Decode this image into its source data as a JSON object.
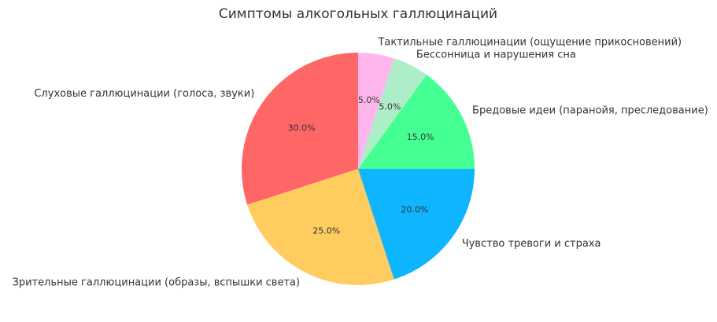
{
  "chart_data": {
    "type": "pie",
    "title": "Симптомы алкогольных галлюцинаций",
    "start_angle_deg": 90,
    "direction": "counterclockwise",
    "slices": [
      {
        "label": "Слуховые галлюцинации (голоса, звуки)",
        "value": 30,
        "pct_label": "30.0%",
        "color": "#ff6666"
      },
      {
        "label": "Зрительные галлюцинации (образы, вспышки света)",
        "value": 25,
        "pct_label": "25.0%",
        "color": "#ffcc5f"
      },
      {
        "label": "Чувство тревоги и страха",
        "value": 20,
        "pct_label": "20.0%",
        "color": "#0fb5ff"
      },
      {
        "label": "Бредовые идеи (паранойя, преследование)",
        "value": 15,
        "pct_label": "15.0%",
        "color": "#44ff91"
      },
      {
        "label": "Бессонница и нарушения сна",
        "value": 5,
        "pct_label": "5.0%",
        "color": "#adeec8"
      },
      {
        "label": "Тактильные галлюцинации (ощущение прикосновений)",
        "value": 5,
        "pct_label": "5.0%",
        "color": "#ffb6ec"
      }
    ]
  }
}
